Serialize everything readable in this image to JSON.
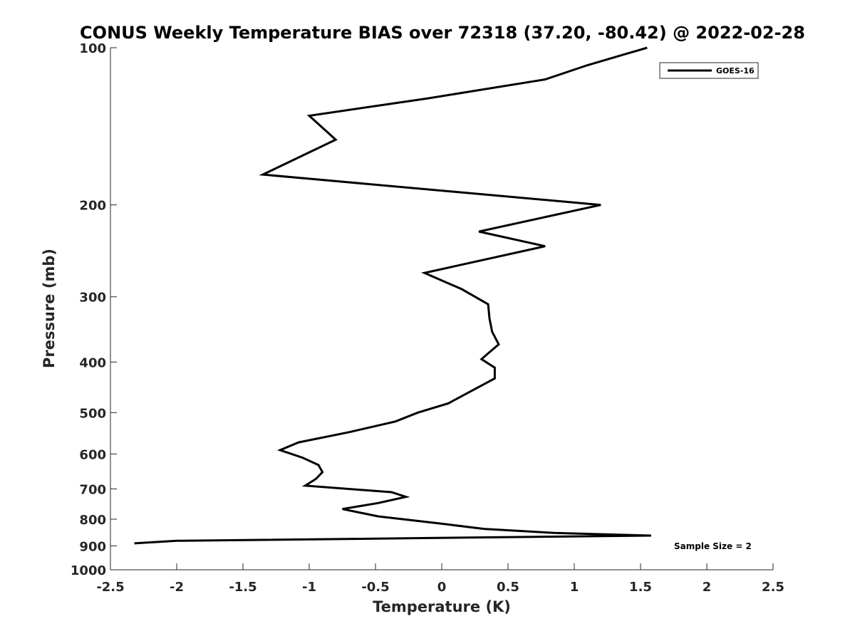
{
  "chart_data": {
    "type": "line",
    "title": "CONUS Weekly Temperature BIAS over 72318 (37.20, -80.42) @ 2022-02-28",
    "xlabel": "Temperature (K)",
    "ylabel": "Pressure (mb)",
    "xlim": [
      -2.5,
      2.5
    ],
    "ylim": [
      100,
      1000
    ],
    "y_scale": "log",
    "y_reversed": true,
    "grid": false,
    "legend_position": "top-right",
    "x_ticks": [
      -2.5,
      -2,
      -1.5,
      -1,
      -0.5,
      0,
      0.5,
      1,
      1.5,
      2,
      2.5
    ],
    "x_tick_labels": [
      "-2.5",
      "-2",
      "-1.5",
      "-1",
      "-0.5",
      "0",
      "0.5",
      "1",
      "1.5",
      "2",
      "2.5"
    ],
    "y_ticks": [
      100,
      200,
      300,
      400,
      500,
      600,
      700,
      800,
      900,
      1000
    ],
    "y_tick_labels": [
      "100",
      "200",
      "300",
      "400",
      "500",
      "600",
      "700",
      "800",
      "900",
      "1000"
    ],
    "series": [
      {
        "name": "GOES-16",
        "color": "#000000",
        "x": [
          1.55,
          1.1,
          0.78,
          -0.1,
          -1.0,
          -0.8,
          -1.35,
          1.2,
          0.28,
          0.78,
          -0.13,
          0.15,
          0.35,
          0.36,
          0.38,
          0.43,
          0.35,
          0.3,
          0.4,
          0.4,
          0.22,
          0.05,
          -0.18,
          -0.35,
          -0.7,
          -1.08,
          -1.22,
          -1.05,
          -0.93,
          -0.9,
          -0.95,
          -1.03,
          -0.38,
          -0.27,
          -0.48,
          -0.75,
          -0.48,
          -0.02,
          0.32,
          0.85,
          1.58,
          -2.0,
          -2.32
        ],
        "y": [
          100,
          108,
          115,
          125,
          135,
          150,
          175,
          200,
          225,
          240,
          270,
          290,
          310,
          330,
          350,
          370,
          385,
          395,
          410,
          430,
          455,
          480,
          500,
          520,
          545,
          570,
          590,
          610,
          630,
          650,
          670,
          690,
          710,
          725,
          745,
          765,
          790,
          815,
          835,
          850,
          860,
          880,
          890
        ]
      }
    ],
    "annotations": [
      "Sample Size = 2"
    ]
  }
}
